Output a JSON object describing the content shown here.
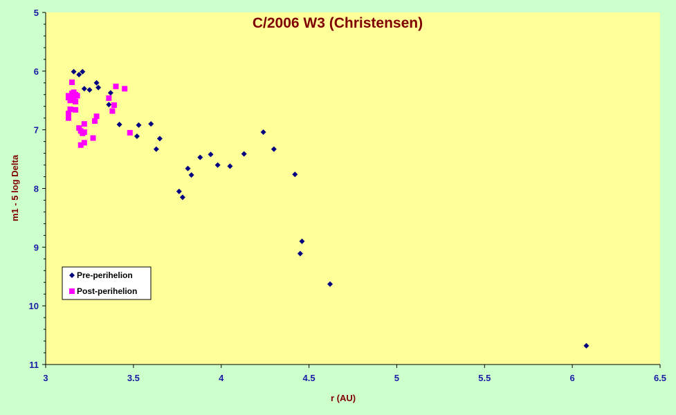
{
  "chart_data": {
    "type": "scatter",
    "title": "C/2006 W3 (Christensen)",
    "xlabel": "r (AU)",
    "ylabel": "m1 - 5 log Delta",
    "xlim": [
      3,
      6.5
    ],
    "ylim": [
      5,
      11
    ],
    "y_inverted": true,
    "x_ticks": [
      "3",
      "3.5",
      "4",
      "4.5",
      "5",
      "5.5",
      "6",
      "6.5"
    ],
    "y_ticks": [
      "5",
      "6",
      "7",
      "8",
      "9",
      "10",
      "11"
    ],
    "grid": false,
    "legend_position": "bottom-left",
    "colors": {
      "plot_background": "#ffff99",
      "page_background": "#ccffcc",
      "pre_marker": "#000080",
      "post_marker": "#ff00ff",
      "title": "#800000",
      "tick_labels": "#1a1aa6"
    },
    "series": [
      {
        "name": "Pre-perihelion",
        "marker": "diamond",
        "points": [
          [
            3.16,
            6.01
          ],
          [
            3.19,
            6.06
          ],
          [
            3.21,
            6.01
          ],
          [
            3.22,
            6.3
          ],
          [
            3.25,
            6.32
          ],
          [
            3.29,
            6.2
          ],
          [
            3.3,
            6.28
          ],
          [
            3.36,
            6.57
          ],
          [
            3.37,
            6.37
          ],
          [
            3.42,
            6.91
          ],
          [
            3.52,
            7.11
          ],
          [
            3.53,
            6.92
          ],
          [
            3.6,
            6.9
          ],
          [
            3.63,
            7.33
          ],
          [
            3.65,
            7.15
          ],
          [
            3.76,
            8.05
          ],
          [
            3.78,
            8.15
          ],
          [
            3.81,
            7.66
          ],
          [
            3.83,
            7.77
          ],
          [
            3.88,
            7.47
          ],
          [
            3.94,
            7.42
          ],
          [
            3.98,
            7.6
          ],
          [
            4.05,
            7.62
          ],
          [
            4.13,
            7.41
          ],
          [
            4.24,
            7.04
          ],
          [
            4.3,
            7.33
          ],
          [
            4.42,
            7.76
          ],
          [
            4.45,
            9.11
          ],
          [
            4.46,
            8.9
          ],
          [
            4.62,
            9.63
          ],
          [
            6.08,
            10.68
          ]
        ]
      },
      {
        "name": "Post-perihelion",
        "marker": "square",
        "points": [
          [
            3.13,
            6.8
          ],
          [
            3.13,
            6.72
          ],
          [
            3.13,
            6.45
          ],
          [
            3.13,
            6.42
          ],
          [
            3.14,
            6.5
          ],
          [
            3.14,
            6.65
          ],
          [
            3.15,
            6.42
          ],
          [
            3.15,
            6.38
          ],
          [
            3.15,
            6.19
          ],
          [
            3.16,
            6.36
          ],
          [
            3.16,
            6.45
          ],
          [
            3.17,
            6.4
          ],
          [
            3.17,
            6.66
          ],
          [
            3.17,
            6.52
          ],
          [
            3.18,
            6.42
          ],
          [
            3.19,
            6.97
          ],
          [
            3.2,
            7.26
          ],
          [
            3.2,
            7.02
          ],
          [
            3.21,
            7.06
          ],
          [
            3.22,
            6.9
          ],
          [
            3.22,
            7.04
          ],
          [
            3.22,
            7.22
          ],
          [
            3.27,
            7.14
          ],
          [
            3.28,
            6.85
          ],
          [
            3.29,
            6.77
          ],
          [
            3.36,
            6.46
          ],
          [
            3.38,
            6.68
          ],
          [
            3.39,
            6.58
          ],
          [
            3.4,
            6.26
          ],
          [
            3.45,
            6.3
          ],
          [
            3.48,
            7.05
          ]
        ]
      }
    ]
  }
}
